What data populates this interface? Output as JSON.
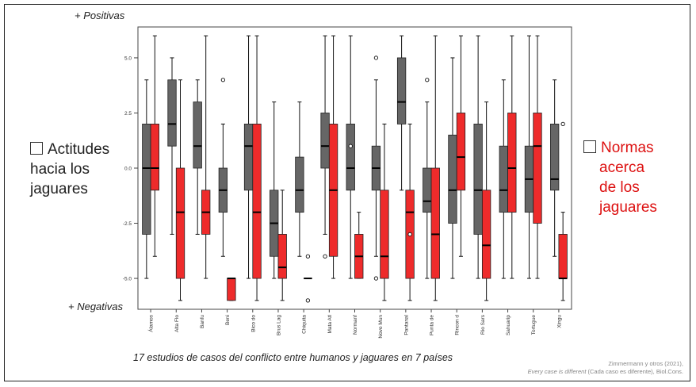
{
  "labels": {
    "positive": "+ Positivas",
    "negative": "+ Negativas"
  },
  "legend": {
    "left": [
      "Actitudes",
      "hacia los",
      "jaguares"
    ],
    "right": [
      "Normas",
      "acerca",
      "de los",
      "jaguares"
    ]
  },
  "caption": "17 estudios de casos del conflicto entre humanos y jaguares en 7 países",
  "credit": {
    "line1": "Zimmermann y otros (2021),",
    "title": "Every case is different",
    "rest": " (Cada caso es diferente), Biol.Cons."
  },
  "colors": {
    "attitudes": "#666666",
    "norms": "#ee2b2b"
  },
  "chart_data": {
    "type": "boxplot",
    "ylim": [
      -6.4,
      6.4
    ],
    "yticks": [
      5.0,
      2.5,
      0.0,
      -2.5,
      -5.0
    ],
    "ytick_labels": [
      "5.0",
      "2.5",
      "0.0",
      "-2.5",
      "-5.0"
    ],
    "grid": false,
    "categories": [
      "Álamos",
      "Alta Flo",
      "Banfu",
      "Beni",
      "Bico do",
      "Brus Lag",
      "Chiquita",
      "Mata Atl",
      "Normanf",
      "Novo Mun",
      "Pantanal",
      "Punta de",
      "Rincon d",
      "Rio Sars",
      "Sahuarip",
      "Tortugue",
      "Xingu"
    ],
    "series": [
      {
        "name": "Actitudes hacia los jaguares",
        "boxes": [
          {
            "min": -5,
            "q1": -3,
            "median": 0,
            "q3": 2,
            "max": 4,
            "outliers": []
          },
          {
            "min": -3,
            "q1": 1,
            "median": 2,
            "q3": 4,
            "max": 5,
            "outliers": []
          },
          {
            "min": -3,
            "q1": 0,
            "median": 1,
            "q3": 3,
            "max": 4,
            "outliers": []
          },
          {
            "min": -4,
            "q1": -2,
            "median": -1,
            "q3": 0,
            "max": 2,
            "outliers": [
              4
            ]
          },
          {
            "min": -5,
            "q1": -1,
            "median": 1,
            "q3": 2,
            "max": 6,
            "outliers": []
          },
          {
            "min": -5,
            "q1": -4,
            "median": -2.5,
            "q3": -1,
            "max": 3,
            "outliers": []
          },
          {
            "min": -4,
            "q1": -2,
            "median": -1,
            "q3": 0.5,
            "max": 3,
            "outliers": []
          },
          {
            "min": -3,
            "q1": 0,
            "median": 1,
            "q3": 2.5,
            "max": 6,
            "outliers": [
              -4
            ]
          },
          {
            "min": -5,
            "q1": -1,
            "median": 0,
            "q3": 2,
            "max": 6,
            "outliers": [
              1
            ]
          },
          {
            "min": -4,
            "q1": -1,
            "median": 0,
            "q3": 1,
            "max": 4,
            "outliers": [
              5,
              -5
            ]
          },
          {
            "min": -1,
            "q1": 2,
            "median": 3,
            "q3": 5,
            "max": 6,
            "outliers": []
          },
          {
            "min": -5,
            "q1": -2,
            "median": -1.5,
            "q3": 0,
            "max": 3,
            "outliers": [
              4
            ]
          },
          {
            "min": -5,
            "q1": -2.5,
            "median": -1,
            "q3": 1.5,
            "max": 5,
            "outliers": []
          },
          {
            "min": -5,
            "q1": -3,
            "median": -1,
            "q3": 2,
            "max": 6,
            "outliers": []
          },
          {
            "min": -5,
            "q1": -2,
            "median": -1,
            "q3": 1,
            "max": 4,
            "outliers": []
          },
          {
            "min": -5,
            "q1": -2,
            "median": -0.5,
            "q3": 1,
            "max": 6,
            "outliers": []
          },
          {
            "min": -4,
            "q1": -1,
            "median": -0.5,
            "q3": 2,
            "max": 4,
            "outliers": []
          }
        ]
      },
      {
        "name": "Normas acerca de los jaguares",
        "boxes": [
          {
            "min": -4,
            "q1": -1,
            "median": 0,
            "q3": 2,
            "max": 6,
            "outliers": []
          },
          {
            "min": -6,
            "q1": -5,
            "median": -2,
            "q3": 0,
            "max": 4,
            "outliers": []
          },
          {
            "min": -5,
            "q1": -3,
            "median": -2,
            "q3": -1,
            "max": 6,
            "outliers": []
          },
          {
            "min": -6,
            "q1": -6,
            "median": -5,
            "q3": -5,
            "max": -5,
            "outliers": []
          },
          {
            "min": -6,
            "q1": -5,
            "median": -2,
            "q3": 2,
            "max": 6,
            "outliers": []
          },
          {
            "min": -6,
            "q1": -5,
            "median": -4.5,
            "q3": -3,
            "max": -1,
            "outliers": []
          },
          {
            "min": -5,
            "q1": -5,
            "median": -5,
            "q3": -5,
            "max": -5,
            "outliers": [
              -4,
              -6
            ]
          },
          {
            "min": -5,
            "q1": -4,
            "median": -1,
            "q3": 2,
            "max": 6,
            "outliers": []
          },
          {
            "min": -5,
            "q1": -5,
            "median": -4,
            "q3": -3,
            "max": -2,
            "outliers": []
          },
          {
            "min": -6,
            "q1": -5,
            "median": -4,
            "q3": -1,
            "max": 2,
            "outliers": []
          },
          {
            "min": -6,
            "q1": -5,
            "median": -2,
            "q3": -1,
            "max": 2,
            "outliers": [
              -3
            ]
          },
          {
            "min": -6,
            "q1": -5,
            "median": -3,
            "q3": 0,
            "max": 6,
            "outliers": []
          },
          {
            "min": -4,
            "q1": -1,
            "median": 0.5,
            "q3": 2.5,
            "max": 6,
            "outliers": []
          },
          {
            "min": -6,
            "q1": -5,
            "median": -3.5,
            "q3": -1,
            "max": 3,
            "outliers": []
          },
          {
            "min": -5,
            "q1": -2,
            "median": 0,
            "q3": 2.5,
            "max": 6,
            "outliers": []
          },
          {
            "min": -5,
            "q1": -2.5,
            "median": 1,
            "q3": 2.5,
            "max": 6,
            "outliers": []
          },
          {
            "min": -6,
            "q1": -5,
            "median": -5,
            "q3": -3,
            "max": -2,
            "outliers": [
              2
            ]
          }
        ]
      }
    ]
  }
}
